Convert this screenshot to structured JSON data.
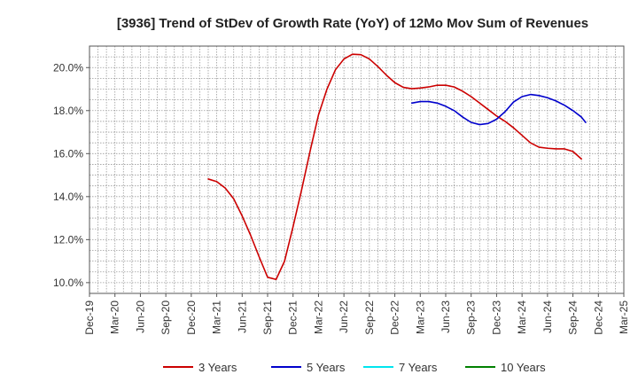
{
  "chart_data": {
    "type": "line",
    "title": "[3936]  Trend of StDev of Growth Rate (YoY) of 12Mo Mov Sum of Revenues",
    "xlabel": "",
    "ylabel": "",
    "x_ticks": [
      "Dec-19",
      "Mar-20",
      "Jun-20",
      "Sep-20",
      "Dec-20",
      "Mar-21",
      "Jun-21",
      "Sep-21",
      "Dec-21",
      "Mar-22",
      "Jun-22",
      "Sep-22",
      "Dec-22",
      "Mar-23",
      "Jun-23",
      "Sep-23",
      "Dec-23",
      "Mar-24",
      "Jun-24",
      "Sep-24",
      "Dec-24",
      "Mar-25"
    ],
    "y_ticks": [
      10.0,
      12.0,
      14.0,
      16.0,
      18.0,
      20.0
    ],
    "y_tick_labels": [
      "10.0%",
      "12.0%",
      "14.0%",
      "16.0%",
      "18.0%",
      "20.0%"
    ],
    "ylim": [
      9.5,
      21.0
    ],
    "x_range_months": [
      0,
      63
    ],
    "grid": true,
    "legend_position": "bottom",
    "series": [
      {
        "name": "3 Years",
        "color": "#cc0000",
        "points": [
          [
            14,
            14.82
          ],
          [
            15,
            14.7
          ],
          [
            16,
            14.4
          ],
          [
            17,
            13.9
          ],
          [
            18,
            13.1
          ],
          [
            19,
            12.2
          ],
          [
            20,
            11.2
          ],
          [
            21,
            10.25
          ],
          [
            22,
            10.15
          ],
          [
            23,
            11.0
          ],
          [
            24,
            12.6
          ],
          [
            25,
            14.3
          ],
          [
            26,
            16.1
          ],
          [
            27,
            17.8
          ],
          [
            28,
            19.0
          ],
          [
            29,
            19.9
          ],
          [
            30,
            20.4
          ],
          [
            31,
            20.62
          ],
          [
            32,
            20.6
          ],
          [
            33,
            20.4
          ],
          [
            34,
            20.05
          ],
          [
            35,
            19.65
          ],
          [
            36,
            19.3
          ],
          [
            37,
            19.08
          ],
          [
            38,
            19.02
          ],
          [
            39,
            19.05
          ],
          [
            40,
            19.1
          ],
          [
            41,
            19.18
          ],
          [
            42,
            19.18
          ],
          [
            43,
            19.1
          ],
          [
            44,
            18.9
          ],
          [
            45,
            18.65
          ],
          [
            46,
            18.35
          ],
          [
            47,
            18.05
          ],
          [
            48,
            17.75
          ],
          [
            49,
            17.5
          ],
          [
            50,
            17.2
          ],
          [
            51,
            16.85
          ],
          [
            52,
            16.5
          ],
          [
            53,
            16.3
          ],
          [
            54,
            16.25
          ],
          [
            55,
            16.22
          ],
          [
            56,
            16.22
          ],
          [
            57,
            16.1
          ],
          [
            58,
            15.75
          ]
        ]
      },
      {
        "name": "5 Years",
        "color": "#0000cc",
        "points": [
          [
            38,
            18.35
          ],
          [
            39,
            18.42
          ],
          [
            40,
            18.42
          ],
          [
            41,
            18.35
          ],
          [
            42,
            18.2
          ],
          [
            43,
            18.0
          ],
          [
            44,
            17.7
          ],
          [
            45,
            17.45
          ],
          [
            46,
            17.35
          ],
          [
            47,
            17.4
          ],
          [
            48,
            17.6
          ],
          [
            49,
            17.95
          ],
          [
            50,
            18.4
          ],
          [
            51,
            18.65
          ],
          [
            52,
            18.75
          ],
          [
            53,
            18.7
          ],
          [
            54,
            18.6
          ],
          [
            55,
            18.45
          ],
          [
            56,
            18.25
          ],
          [
            57,
            18.0
          ],
          [
            58,
            17.7
          ],
          [
            58.5,
            17.45
          ]
        ]
      },
      {
        "name": "7 Years",
        "color": "#00e5ee",
        "points": []
      },
      {
        "name": "10 Years",
        "color": "#008000",
        "points": []
      }
    ]
  }
}
